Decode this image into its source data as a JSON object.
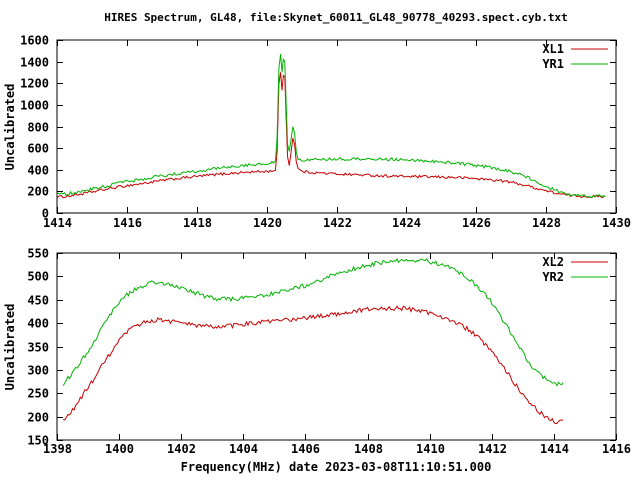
{
  "figure": {
    "background": "#ffffff",
    "border_color": "#000000",
    "text_color": "#000000"
  },
  "chart_data": [
    {
      "type": "line",
      "title": "HIRES Spectrum, GL48, file:Skynet_60011_GL48_90778_40293.spect.cyb.txt",
      "xlabel": "",
      "ylabel": "Uncalibrated",
      "xlim": [
        1414,
        1430
      ],
      "ylim": [
        0,
        1600
      ],
      "xticks": [
        1414,
        1416,
        1418,
        1420,
        1422,
        1424,
        1426,
        1428,
        1430
      ],
      "yticks": [
        0,
        200,
        400,
        600,
        800,
        1000,
        1200,
        1400,
        1600
      ],
      "grid": false,
      "legend_position": "top-right",
      "series": [
        {
          "name": "XL1",
          "color": "#c80000",
          "noise": 12,
          "points": [
            [
              1414.0,
              148
            ],
            [
              1414.3,
              155
            ],
            [
              1414.6,
              170
            ],
            [
              1415.0,
              195
            ],
            [
              1415.4,
              220
            ],
            [
              1415.8,
              243
            ],
            [
              1416.2,
              262
            ],
            [
              1416.6,
              280
            ],
            [
              1417.0,
              300
            ],
            [
              1417.4,
              317
            ],
            [
              1417.8,
              332
            ],
            [
              1418.2,
              345
            ],
            [
              1418.6,
              357
            ],
            [
              1419.0,
              368
            ],
            [
              1419.4,
              376
            ],
            [
              1419.8,
              382
            ],
            [
              1420.1,
              386
            ],
            [
              1420.25,
              400
            ],
            [
              1420.3,
              560
            ],
            [
              1420.35,
              1190
            ],
            [
              1420.4,
              1290
            ],
            [
              1420.44,
              1140
            ],
            [
              1420.48,
              1280
            ],
            [
              1420.52,
              1260
            ],
            [
              1420.56,
              860
            ],
            [
              1420.6,
              520
            ],
            [
              1420.65,
              450
            ],
            [
              1420.7,
              560
            ],
            [
              1420.75,
              700
            ],
            [
              1420.8,
              640
            ],
            [
              1420.85,
              470
            ],
            [
              1420.9,
              410
            ],
            [
              1421.0,
              385
            ],
            [
              1421.3,
              375
            ],
            [
              1421.6,
              368
            ],
            [
              1422.0,
              362
            ],
            [
              1422.5,
              355
            ],
            [
              1423.0,
              348
            ],
            [
              1423.5,
              342
            ],
            [
              1424.0,
              338
            ],
            [
              1424.5,
              335
            ],
            [
              1425.0,
              332
            ],
            [
              1425.5,
              328
            ],
            [
              1426.0,
              318
            ],
            [
              1426.4,
              308
            ],
            [
              1426.8,
              295
            ],
            [
              1427.2,
              272
            ],
            [
              1427.6,
              240
            ],
            [
              1428.0,
              205
            ],
            [
              1428.4,
              175
            ],
            [
              1428.7,
              162
            ],
            [
              1429.0,
              156
            ],
            [
              1429.4,
              152
            ],
            [
              1429.7,
              154
            ]
          ]
        },
        {
          "name": "YR1",
          "color": "#00b400",
          "noise": 14,
          "points": [
            [
              1414.0,
              168
            ],
            [
              1414.3,
              178
            ],
            [
              1414.6,
              196
            ],
            [
              1415.0,
              222
            ],
            [
              1415.4,
              250
            ],
            [
              1415.8,
              277
            ],
            [
              1416.2,
              300
            ],
            [
              1416.6,
              322
            ],
            [
              1417.0,
              343
            ],
            [
              1417.4,
              362
            ],
            [
              1417.8,
              380
            ],
            [
              1418.2,
              396
            ],
            [
              1418.6,
              412
            ],
            [
              1419.0,
              427
            ],
            [
              1419.4,
              441
            ],
            [
              1419.8,
              453
            ],
            [
              1420.1,
              462
            ],
            [
              1420.25,
              475
            ],
            [
              1420.3,
              700
            ],
            [
              1420.35,
              1340
            ],
            [
              1420.4,
              1480
            ],
            [
              1420.44,
              1300
            ],
            [
              1420.48,
              1430
            ],
            [
              1420.52,
              1390
            ],
            [
              1420.56,
              1000
            ],
            [
              1420.6,
              640
            ],
            [
              1420.65,
              560
            ],
            [
              1420.7,
              680
            ],
            [
              1420.75,
              810
            ],
            [
              1420.8,
              730
            ],
            [
              1420.85,
              560
            ],
            [
              1420.9,
              505
            ],
            [
              1421.0,
              492
            ],
            [
              1421.4,
              494
            ],
            [
              1421.8,
              497
            ],
            [
              1422.2,
              500
            ],
            [
              1422.6,
              502
            ],
            [
              1423.0,
              501
            ],
            [
              1423.5,
              498
            ],
            [
              1424.0,
              492
            ],
            [
              1424.5,
              483
            ],
            [
              1425.0,
              472
            ],
            [
              1425.5,
              458
            ],
            [
              1426.0,
              440
            ],
            [
              1426.4,
              422
            ],
            [
              1426.8,
              398
            ],
            [
              1427.2,
              362
            ],
            [
              1427.6,
              310
            ],
            [
              1428.0,
              248
            ],
            [
              1428.4,
              195
            ],
            [
              1428.7,
              172
            ],
            [
              1429.0,
              160
            ],
            [
              1429.4,
              156
            ],
            [
              1429.7,
              158
            ]
          ]
        }
      ]
    },
    {
      "type": "line",
      "title": "",
      "xlabel": "Frequency(MHz) date 2023-03-08T11:10:51.000",
      "ylabel": "Uncalibrated",
      "xlim": [
        1398,
        1416
      ],
      "ylim": [
        150,
        550
      ],
      "xticks": [
        1398,
        1400,
        1402,
        1404,
        1406,
        1408,
        1410,
        1412,
        1414,
        1416
      ],
      "yticks": [
        150,
        200,
        250,
        300,
        350,
        400,
        450,
        500,
        550
      ],
      "grid": false,
      "legend_position": "top-right",
      "series": [
        {
          "name": "XL2",
          "color": "#c80000",
          "noise": 5,
          "points": [
            [
              1398.2,
              190
            ],
            [
              1398.5,
              213
            ],
            [
              1398.8,
              243
            ],
            [
              1399.1,
              272
            ],
            [
              1399.4,
              303
            ],
            [
              1399.7,
              333
            ],
            [
              1400.0,
              362
            ],
            [
              1400.3,
              383
            ],
            [
              1400.6,
              396
            ],
            [
              1400.9,
              404
            ],
            [
              1401.2,
              407
            ],
            [
              1401.5,
              406
            ],
            [
              1401.8,
              403
            ],
            [
              1402.1,
              399
            ],
            [
              1402.4,
              396
            ],
            [
              1402.8,
              393
            ],
            [
              1403.2,
              392
            ],
            [
              1403.6,
              394
            ],
            [
              1404.0,
              398
            ],
            [
              1404.4,
              401
            ],
            [
              1404.8,
              403
            ],
            [
              1405.2,
              405
            ],
            [
              1405.6,
              408
            ],
            [
              1406.0,
              411
            ],
            [
              1406.4,
              414
            ],
            [
              1406.8,
              418
            ],
            [
              1407.2,
              422
            ],
            [
              1407.6,
              426
            ],
            [
              1408.0,
              429
            ],
            [
              1408.4,
              431
            ],
            [
              1408.8,
              432
            ],
            [
              1409.2,
              431
            ],
            [
              1409.6,
              428
            ],
            [
              1410.0,
              422
            ],
            [
              1410.4,
              414
            ],
            [
              1410.8,
              403
            ],
            [
              1411.2,
              388
            ],
            [
              1411.6,
              367
            ],
            [
              1412.0,
              338
            ],
            [
              1412.4,
              303
            ],
            [
              1412.8,
              266
            ],
            [
              1413.2,
              232
            ],
            [
              1413.6,
              206
            ],
            [
              1413.9,
              193
            ],
            [
              1414.1,
              189
            ],
            [
              1414.3,
              193
            ]
          ]
        },
        {
          "name": "YR2",
          "color": "#00b400",
          "noise": 5,
          "points": [
            [
              1398.2,
              271
            ],
            [
              1398.5,
              293
            ],
            [
              1399.0,
              340
            ],
            [
              1399.4,
              385
            ],
            [
              1399.8,
              428
            ],
            [
              1400.2,
              458
            ],
            [
              1400.6,
              476
            ],
            [
              1401.0,
              486
            ],
            [
              1401.3,
              487
            ],
            [
              1401.6,
              483
            ],
            [
              1402.0,
              474
            ],
            [
              1402.4,
              465
            ],
            [
              1402.8,
              458
            ],
            [
              1403.2,
              452
            ],
            [
              1403.6,
              450
            ],
            [
              1404.0,
              453
            ],
            [
              1404.4,
              458
            ],
            [
              1404.8,
              462
            ],
            [
              1405.2,
              467
            ],
            [
              1405.6,
              473
            ],
            [
              1406.0,
              481
            ],
            [
              1406.4,
              490
            ],
            [
              1406.8,
              500
            ],
            [
              1407.2,
              509
            ],
            [
              1407.6,
              517
            ],
            [
              1408.0,
              524
            ],
            [
              1408.4,
              529
            ],
            [
              1408.8,
              532
            ],
            [
              1409.2,
              534
            ],
            [
              1409.6,
              535
            ],
            [
              1410.0,
              532
            ],
            [
              1410.4,
              525
            ],
            [
              1410.8,
              514
            ],
            [
              1411.2,
              498
            ],
            [
              1411.6,
              475
            ],
            [
              1412.0,
              443
            ],
            [
              1412.4,
              403
            ],
            [
              1412.8,
              358
            ],
            [
              1413.2,
              315
            ],
            [
              1413.6,
              287
            ],
            [
              1414.0,
              269
            ],
            [
              1414.3,
              273
            ]
          ]
        }
      ]
    }
  ]
}
